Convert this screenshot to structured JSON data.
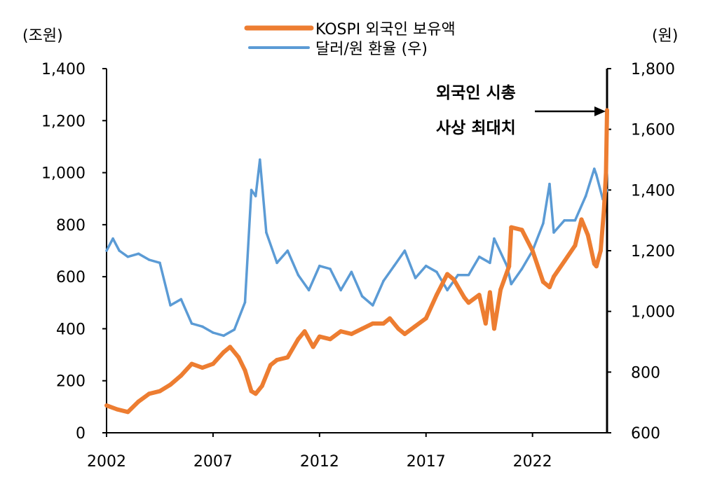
{
  "chart_data": {
    "type": "line",
    "left_unit": "(조원)",
    "right_unit": "(원)",
    "annotation": [
      "외국인 시총",
      "사상 최대치"
    ],
    "x_ticks": [
      "2002",
      "2007",
      "2012",
      "2017",
      "2022"
    ],
    "xlim": [
      2002,
      2025.5
    ],
    "left_ylim": [
      0,
      1400
    ],
    "left_ticks": [
      "0",
      "200",
      "400",
      "600",
      "800",
      "1,000",
      "1,200",
      "1,400"
    ],
    "right_ylim": [
      600,
      1800
    ],
    "right_ticks": [
      "600",
      "800",
      "1,000",
      "1,200",
      "1,400",
      "1,600",
      "1,800"
    ],
    "legend_position": "top-center",
    "grid": false,
    "series": [
      {
        "name": "KOSPI 외국인 보유액",
        "axis": "left",
        "color": "#ED7D31",
        "x": [
          2002.0,
          2002.5,
          2003.0,
          2003.5,
          2004.0,
          2004.5,
          2005.0,
          2005.5,
          2006.0,
          2006.5,
          2007.0,
          2007.5,
          2007.8,
          2008.2,
          2008.5,
          2008.8,
          2009.0,
          2009.3,
          2009.7,
          2010.0,
          2010.5,
          2011.0,
          2011.3,
          2011.7,
          2012.0,
          2012.5,
          2013.0,
          2013.5,
          2014.0,
          2014.5,
          2015.0,
          2015.3,
          2015.7,
          2016.0,
          2016.5,
          2017.0,
          2017.5,
          2018.0,
          2018.3,
          2018.8,
          2019.0,
          2019.5,
          2019.8,
          2020.0,
          2020.2,
          2020.5,
          2020.9,
          2021.0,
          2021.5,
          2022.0,
          2022.5,
          2022.8,
          2023.0,
          2023.5,
          2024.0,
          2024.3,
          2024.6,
          2024.9,
          2025.0,
          2025.2,
          2025.35,
          2025.45,
          2025.5
        ],
        "y": [
          105,
          90,
          80,
          120,
          150,
          160,
          185,
          220,
          265,
          250,
          265,
          310,
          330,
          290,
          240,
          160,
          150,
          180,
          260,
          280,
          290,
          360,
          390,
          330,
          370,
          360,
          390,
          380,
          400,
          420,
          420,
          440,
          400,
          380,
          410,
          440,
          530,
          610,
          590,
          520,
          500,
          530,
          420,
          540,
          400,
          550,
          640,
          790,
          780,
          700,
          580,
          560,
          600,
          660,
          720,
          820,
          760,
          650,
          640,
          700,
          850,
          1000,
          1240
        ]
      },
      {
        "name": "달러/원 환율 (우)",
        "axis": "right",
        "color": "#5B9BD5",
        "x": [
          2002.0,
          2002.3,
          2002.6,
          2003.0,
          2003.5,
          2004.0,
          2004.5,
          2005.0,
          2005.5,
          2006.0,
          2006.5,
          2007.0,
          2007.5,
          2008.0,
          2008.5,
          2008.8,
          2009.0,
          2009.2,
          2009.5,
          2010.0,
          2010.5,
          2011.0,
          2011.5,
          2012.0,
          2012.5,
          2013.0,
          2013.5,
          2014.0,
          2014.5,
          2015.0,
          2015.5,
          2016.0,
          2016.5,
          2017.0,
          2017.5,
          2018.0,
          2018.5,
          2019.0,
          2019.5,
          2020.0,
          2020.2,
          2020.8,
          2021.0,
          2021.5,
          2022.0,
          2022.5,
          2022.8,
          2023.0,
          2023.5,
          2024.0,
          2024.5,
          2024.9,
          2025.0,
          2025.3,
          2025.5
        ],
        "y": [
          1200,
          1240,
          1200,
          1180,
          1190,
          1170,
          1160,
          1020,
          1040,
          960,
          950,
          930,
          920,
          940,
          1030,
          1400,
          1380,
          1500,
          1260,
          1160,
          1200,
          1120,
          1070,
          1150,
          1140,
          1070,
          1130,
          1050,
          1020,
          1100,
          1150,
          1200,
          1110,
          1150,
          1130,
          1070,
          1120,
          1120,
          1180,
          1160,
          1240,
          1150,
          1090,
          1140,
          1200,
          1290,
          1420,
          1260,
          1300,
          1300,
          1380,
          1470,
          1450,
          1370,
          1400
        ]
      }
    ]
  }
}
